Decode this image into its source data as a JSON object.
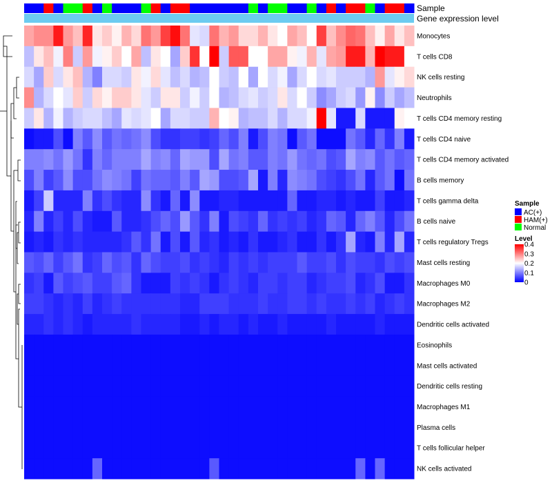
{
  "chart_data": {
    "type": "heatmap",
    "title": "",
    "annotation_labels": {
      "sample": "Sample",
      "gene": "Gene expression level"
    },
    "gene_track_color": "#6CCBF0",
    "sample_legend": {
      "title": "Sample",
      "groups": [
        {
          "name": "AC(+)",
          "color": "#0000FF"
        },
        {
          "name": "HAM(+)",
          "color": "#FF0000"
        },
        {
          "name": "Normal",
          "color": "#00FF00"
        }
      ]
    },
    "value_legend": {
      "title": "Level",
      "ticks": [
        "0.4",
        "0.3",
        "0.2",
        "0.1",
        "0"
      ],
      "tick_values": [
        0.4,
        0.3,
        0.2,
        0.1,
        0
      ],
      "range": [
        0,
        0.4
      ],
      "colors": {
        "low": "#0000FF",
        "mid": "#FFFFFF",
        "high": "#FF0000",
        "mid_value": 0.2
      }
    },
    "samples": [
      "AC(+)",
      "AC(+)",
      "HAM(+)",
      "AC(+)",
      "Normal",
      "Normal",
      "HAM(+)",
      "AC(+)",
      "Normal",
      "AC(+)",
      "AC(+)",
      "AC(+)",
      "Normal",
      "HAM(+)",
      "AC(+)",
      "HAM(+)",
      "HAM(+)",
      "AC(+)",
      "AC(+)",
      "AC(+)",
      "AC(+)",
      "AC(+)",
      "AC(+)",
      "Normal",
      "AC(+)",
      "Normal",
      "Normal",
      "AC(+)",
      "AC(+)",
      "Normal",
      "AC(+)",
      "HAM(+)",
      "AC(+)",
      "HAM(+)",
      "HAM(+)",
      "Normal",
      "AC(+)",
      "HAM(+)",
      "HAM(+)",
      "AC(+)"
    ],
    "rows": [
      {
        "name": "Monocytes",
        "values": [
          0.27,
          0.29,
          0.29,
          0.38,
          0.28,
          0.25,
          0.37,
          0.22,
          0.24,
          0.21,
          0.26,
          0.23,
          0.31,
          0.28,
          0.35,
          0.39,
          0.31,
          0.18,
          0.17,
          0.31,
          0.26,
          0.28,
          0.23,
          0.23,
          0.26,
          0.22,
          0.2,
          0.27,
          0.25,
          0.2,
          0.35,
          0.25,
          0.29,
          0.32,
          0.31,
          0.25,
          0.21,
          0.27,
          0.22,
          0.25
        ]
      },
      {
        "name": "T cells CD8",
        "values": [
          0.15,
          0.22,
          0.25,
          0.19,
          0.3,
          0.16,
          0.28,
          0.19,
          0.21,
          0.24,
          0.2,
          0.27,
          0.15,
          0.22,
          0.2,
          0.13,
          0.24,
          0.36,
          0.2,
          0.4,
          0.16,
          0.33,
          0.33,
          0.2,
          0.2,
          0.27,
          0.27,
          0.21,
          0.19,
          0.26,
          0.18,
          0.27,
          0.28,
          0.38,
          0.38,
          0.26,
          0.4,
          0.38,
          0.38,
          0.2
        ]
      },
      {
        "name": "NK cells resting",
        "values": [
          0.17,
          0.13,
          0.24,
          0.17,
          0.22,
          0.25,
          0.14,
          0.1,
          0.17,
          0.17,
          0.16,
          0.22,
          0.19,
          0.23,
          0.18,
          0.15,
          0.17,
          0.14,
          0.15,
          0.2,
          0.16,
          0.15,
          0.2,
          0.13,
          0.2,
          0.17,
          0.19,
          0.13,
          0.17,
          0.2,
          0.17,
          0.18,
          0.16,
          0.16,
          0.16,
          0.14,
          0.28,
          0.18,
          0.21,
          0.23
        ]
      },
      {
        "name": "Neutrophils",
        "values": [
          0.29,
          0.14,
          0.17,
          0.2,
          0.18,
          0.24,
          0.16,
          0.23,
          0.21,
          0.24,
          0.24,
          0.22,
          0.18,
          0.16,
          0.22,
          0.22,
          0.16,
          0.19,
          0.16,
          0.2,
          0.14,
          0.15,
          0.17,
          0.18,
          0.16,
          0.17,
          0.22,
          0.17,
          0.2,
          0.16,
          0.11,
          0.13,
          0.16,
          0.17,
          0.12,
          0.21,
          0.11,
          0.16,
          0.13,
          0.15
        ]
      },
      {
        "name": "T cells CD4 memory resting",
        "values": [
          0.16,
          0.22,
          0.14,
          0.19,
          0.14,
          0.16,
          0.17,
          0.17,
          0.15,
          0.13,
          0.18,
          0.17,
          0.18,
          0.2,
          0.13,
          0.17,
          0.17,
          0.16,
          0.16,
          0.26,
          0.2,
          0.21,
          0.14,
          0.15,
          0.15,
          0.17,
          0.14,
          0.17,
          0.17,
          0.19,
          0.4,
          0.18,
          0.02,
          0.02,
          0.17,
          0.02,
          0.02,
          0.02,
          0.21,
          0.2
        ]
      },
      {
        "name": "T cells CD4 naive",
        "values": [
          0.01,
          0.02,
          0.02,
          0.06,
          0.01,
          0.1,
          0.07,
          0.11,
          0.07,
          0.09,
          0.08,
          0.09,
          0.11,
          0.06,
          0.04,
          0.04,
          0.05,
          0.05,
          0.04,
          0.05,
          0.08,
          0.06,
          0.1,
          0.02,
          0.06,
          0.1,
          0.09,
          0.01,
          0.07,
          0.09,
          0.01,
          0.01,
          0.01,
          0.09,
          0.07,
          0.03,
          0.08,
          0.04,
          0.1,
          0.02
        ]
      },
      {
        "name": "T cells CD4 memory activated",
        "values": [
          0.1,
          0.1,
          0.11,
          0.09,
          0.12,
          0.09,
          0.04,
          0.1,
          0.08,
          0.1,
          0.1,
          0.1,
          0.13,
          0.1,
          0.11,
          0.08,
          0.13,
          0.12,
          0.12,
          0.06,
          0.13,
          0.09,
          0.1,
          0.07,
          0.07,
          0.1,
          0.09,
          0.12,
          0.09,
          0.08,
          0.09,
          0.06,
          0.07,
          0.13,
          0.1,
          0.11,
          0.07,
          0.09,
          0.07,
          0.08
        ]
      },
      {
        "name": "B cells memory",
        "values": [
          0.06,
          0.1,
          0.05,
          0.07,
          0.11,
          0.06,
          0.06,
          0.09,
          0.11,
          0.1,
          0.09,
          0.05,
          0.09,
          0.08,
          0.08,
          0.07,
          0.1,
          0.07,
          0.13,
          0.12,
          0.06,
          0.06,
          0.07,
          0.13,
          0.02,
          0.1,
          0.03,
          0.11,
          0.1,
          0.09,
          0.06,
          0.05,
          0.04,
          0.06,
          0.09,
          0.03,
          0.07,
          0.09,
          0.01,
          0.09
        ]
      },
      {
        "name": "T cells gamma delta",
        "values": [
          0.02,
          0.05,
          0.16,
          0.03,
          0.03,
          0.03,
          0.1,
          0.04,
          0.06,
          0.04,
          0.03,
          0.03,
          0.11,
          0.04,
          0.02,
          0.08,
          0.02,
          0.11,
          0.02,
          0.02,
          0.03,
          0.03,
          0.02,
          0.02,
          0.02,
          0.02,
          0.02,
          0.08,
          0.02,
          0.02,
          0.03,
          0.03,
          0.02,
          0.03,
          0.02,
          0.02,
          0.05,
          0.02,
          0.02,
          0.03
        ]
      },
      {
        "name": "B cells naive",
        "values": [
          0.03,
          0.1,
          0.03,
          0.05,
          0.03,
          0.06,
          0.03,
          0.02,
          0.02,
          0.07,
          0.03,
          0.03,
          0.04,
          0.06,
          0.08,
          0.06,
          0.12,
          0.07,
          0.04,
          0.1,
          0.02,
          0.06,
          0.05,
          0.04,
          0.08,
          0.04,
          0.05,
          0.04,
          0.05,
          0.03,
          0.04,
          0.08,
          0.07,
          0.03,
          0.08,
          0.1,
          0.07,
          0.03,
          0.06,
          0.09
        ]
      },
      {
        "name": "T cells regulatory  Tregs",
        "values": [
          0.02,
          0.03,
          0.02,
          0.04,
          0.03,
          0.04,
          0.03,
          0.03,
          0.03,
          0.03,
          0.04,
          0.07,
          0.04,
          0.09,
          0.02,
          0.06,
          0.02,
          0.07,
          0.03,
          0.04,
          0.02,
          0.03,
          0.02,
          0.04,
          0.02,
          0.02,
          0.03,
          0.04,
          0.02,
          0.02,
          0.04,
          0.02,
          0.04,
          0.13,
          0.03,
          0.02,
          0.1,
          0.03,
          0.13,
          0.03
        ]
      },
      {
        "name": "Mast cells resting",
        "values": [
          0.07,
          0.06,
          0.08,
          0.05,
          0.07,
          0.09,
          0.04,
          0.05,
          0.08,
          0.06,
          0.07,
          0.04,
          0.08,
          0.06,
          0.05,
          0.05,
          0.06,
          0.04,
          0.05,
          0.04,
          0.03,
          0.05,
          0.04,
          0.05,
          0.04,
          0.05,
          0.05,
          0.05,
          0.07,
          0.05,
          0.05,
          0.06,
          0.04,
          0.06,
          0.05,
          0.05,
          0.04,
          0.06,
          0.05,
          0.06
        ]
      },
      {
        "name": "Macrophages M0",
        "values": [
          0.04,
          0.05,
          0.02,
          0.07,
          0.05,
          0.06,
          0.07,
          0.05,
          0.05,
          0.07,
          0.08,
          0.04,
          0.02,
          0.02,
          0.02,
          0.05,
          0.04,
          0.05,
          0.04,
          0.02,
          0.04,
          0.05,
          0.04,
          0.03,
          0.05,
          0.05,
          0.04,
          0.05,
          0.05,
          0.03,
          0.04,
          0.05,
          0.05,
          0.06,
          0.03,
          0.04,
          0.06,
          0.02,
          0.02,
          0.04
        ]
      },
      {
        "name": "Macrophages M2",
        "values": [
          0.05,
          0.05,
          0.04,
          0.03,
          0.04,
          0.03,
          0.05,
          0.03,
          0.04,
          0.05,
          0.04,
          0.04,
          0.04,
          0.04,
          0.04,
          0.04,
          0.03,
          0.03,
          0.05,
          0.05,
          0.05,
          0.04,
          0.04,
          0.04,
          0.05,
          0.04,
          0.04,
          0.05,
          0.05,
          0.04,
          0.05,
          0.04,
          0.04,
          0.05,
          0.04,
          0.05,
          0.03,
          0.04,
          0.05,
          0.04
        ]
      },
      {
        "name": "Dendritic cells activated",
        "values": [
          0.03,
          0.03,
          0.04,
          0.03,
          0.04,
          0.03,
          0.02,
          0.03,
          0.03,
          0.03,
          0.03,
          0.04,
          0.03,
          0.03,
          0.03,
          0.03,
          0.02,
          0.02,
          0.03,
          0.02,
          0.03,
          0.03,
          0.02,
          0.03,
          0.02,
          0.02,
          0.03,
          0.02,
          0.02,
          0.02,
          0.02,
          0.03,
          0.02,
          0.02,
          0.02,
          0.02,
          0.03,
          0.02,
          0.02,
          0.02
        ]
      },
      {
        "name": "Eosinophils",
        "values": [
          0.01,
          0.01,
          0.01,
          0.01,
          0.01,
          0.01,
          0.01,
          0.01,
          0.01,
          0.01,
          0.01,
          0.01,
          0.01,
          0.01,
          0.01,
          0.01,
          0.01,
          0.01,
          0.01,
          0.01,
          0.01,
          0.01,
          0.01,
          0.01,
          0.01,
          0.01,
          0.01,
          0.01,
          0.01,
          0.01,
          0.01,
          0.01,
          0.01,
          0.01,
          0.01,
          0.01,
          0.01,
          0.01,
          0.01,
          0.01
        ]
      },
      {
        "name": "Mast cells activated",
        "values": [
          0.01,
          0.01,
          0.01,
          0.01,
          0.01,
          0.01,
          0.01,
          0.01,
          0.01,
          0.01,
          0.01,
          0.01,
          0.01,
          0.01,
          0.01,
          0.01,
          0.01,
          0.01,
          0.01,
          0.01,
          0.01,
          0.01,
          0.01,
          0.01,
          0.01,
          0.01,
          0.01,
          0.01,
          0.01,
          0.01,
          0.01,
          0.01,
          0.01,
          0.01,
          0.01,
          0.01,
          0.01,
          0.01,
          0.01,
          0.01
        ]
      },
      {
        "name": "Dendritic cells resting",
        "values": [
          0.01,
          0.01,
          0.01,
          0.01,
          0.01,
          0.01,
          0.01,
          0.01,
          0.01,
          0.01,
          0.01,
          0.01,
          0.01,
          0.01,
          0.01,
          0.01,
          0.01,
          0.01,
          0.01,
          0.01,
          0.01,
          0.01,
          0.01,
          0.01,
          0.01,
          0.01,
          0.01,
          0.01,
          0.01,
          0.01,
          0.01,
          0.01,
          0.01,
          0.01,
          0.01,
          0.01,
          0.01,
          0.01,
          0.01,
          0.01
        ]
      },
      {
        "name": "Macrophages M1",
        "values": [
          0.01,
          0.01,
          0.01,
          0.01,
          0.01,
          0.01,
          0.01,
          0.01,
          0.01,
          0.01,
          0.01,
          0.01,
          0.01,
          0.01,
          0.01,
          0.01,
          0.01,
          0.01,
          0.01,
          0.01,
          0.01,
          0.01,
          0.01,
          0.01,
          0.01,
          0.01,
          0.01,
          0.01,
          0.01,
          0.01,
          0.01,
          0.01,
          0.01,
          0.01,
          0.01,
          0.01,
          0.01,
          0.01,
          0.01,
          0.01
        ]
      },
      {
        "name": "Plasma cells",
        "values": [
          0.01,
          0.01,
          0.01,
          0.01,
          0.01,
          0.01,
          0.01,
          0.01,
          0.01,
          0.01,
          0.01,
          0.01,
          0.01,
          0.01,
          0.01,
          0.01,
          0.01,
          0.01,
          0.01,
          0.01,
          0.01,
          0.01,
          0.01,
          0.01,
          0.01,
          0.01,
          0.01,
          0.01,
          0.01,
          0.01,
          0.01,
          0.01,
          0.01,
          0.01,
          0.01,
          0.01,
          0.01,
          0.01,
          0.01,
          0.01
        ]
      },
      {
        "name": "T cells follicular helper",
        "values": [
          0.01,
          0.01,
          0.01,
          0.01,
          0.01,
          0.01,
          0.01,
          0.01,
          0.01,
          0.01,
          0.01,
          0.01,
          0.01,
          0.01,
          0.01,
          0.01,
          0.01,
          0.01,
          0.01,
          0.01,
          0.01,
          0.01,
          0.01,
          0.01,
          0.01,
          0.01,
          0.01,
          0.01,
          0.01,
          0.01,
          0.01,
          0.01,
          0.01,
          0.01,
          0.01,
          0.01,
          0.01,
          0.01,
          0.01,
          0.01
        ]
      },
      {
        "name": "NK cells activated",
        "values": [
          0.01,
          0.01,
          0.01,
          0.01,
          0.01,
          0.01,
          0.01,
          0.08,
          0.01,
          0.01,
          0.01,
          0.01,
          0.01,
          0.01,
          0.01,
          0.01,
          0.01,
          0.01,
          0.01,
          0.07,
          0.01,
          0.01,
          0.01,
          0.01,
          0.01,
          0.01,
          0.01,
          0.01,
          0.01,
          0.01,
          0.01,
          0.01,
          0.01,
          0.01,
          0.08,
          0.01,
          0.08,
          0.01,
          0.01,
          0.01
        ]
      }
    ]
  }
}
